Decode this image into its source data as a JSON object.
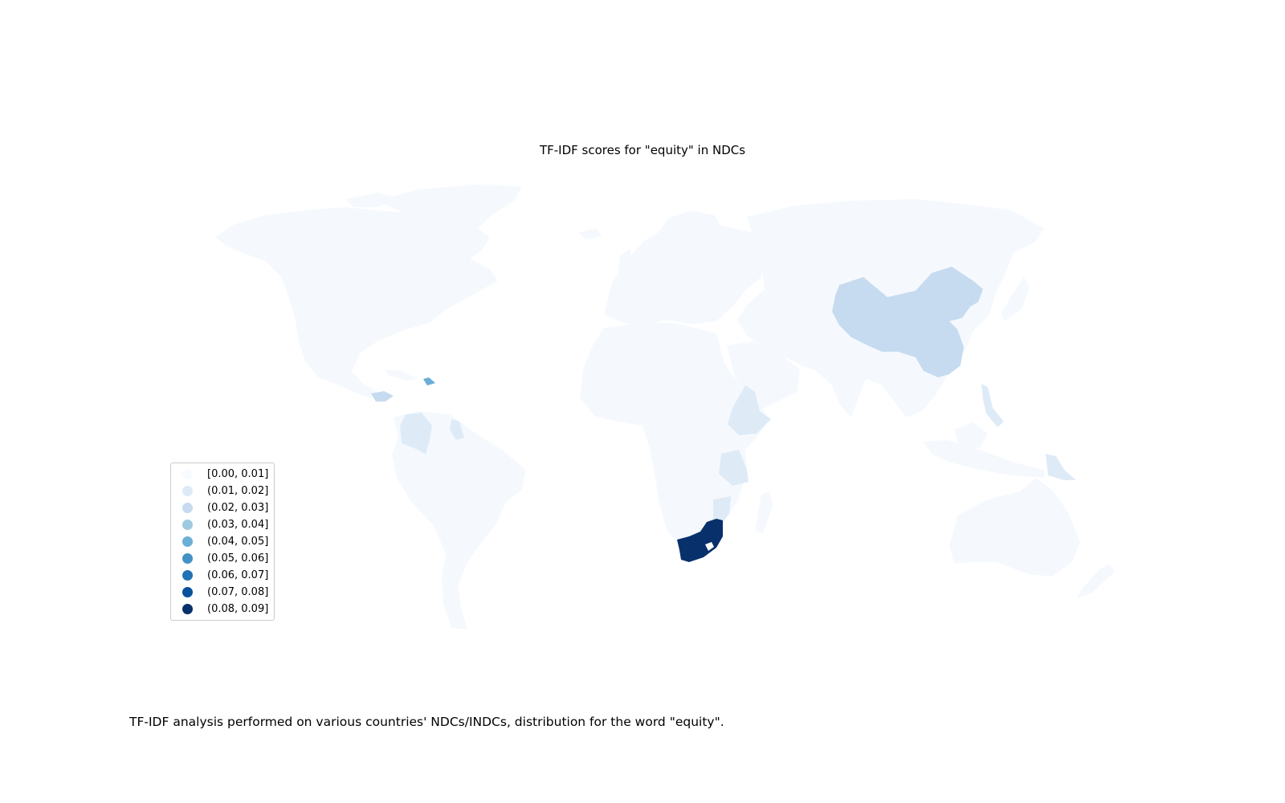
{
  "title": "TF-IDF scores for \"equity\" in NDCs",
  "caption": "TF-IDF analysis performed on various countries' NDCs/INDCs, distribution for the word \"equity\".",
  "colors": {
    "base": "#f5f9fe",
    "bins": [
      "#f7fbff",
      "#deebf7",
      "#c6dbef",
      "#9ecae1",
      "#6baed6",
      "#4292c6",
      "#2171b5",
      "#08519c",
      "#08306b"
    ]
  },
  "legend": {
    "items": [
      {
        "label": "[0.00, 0.01]",
        "color": "#f7fbff"
      },
      {
        "label": "(0.01, 0.02]",
        "color": "#deebf7"
      },
      {
        "label": "(0.02, 0.03]",
        "color": "#c6dbef"
      },
      {
        "label": "(0.03, 0.04]",
        "color": "#9ecae1"
      },
      {
        "label": "(0.04, 0.05]",
        "color": "#6baed6"
      },
      {
        "label": "(0.05, 0.06]",
        "color": "#4292c6"
      },
      {
        "label": "(0.06, 0.07]",
        "color": "#2171b5"
      },
      {
        "label": "(0.07, 0.08]",
        "color": "#08519c"
      },
      {
        "label": "(0.08, 0.09]",
        "color": "#08306b"
      }
    ]
  },
  "highlighted_regions": [
    {
      "region": "china",
      "bin": 2
    },
    {
      "region": "ethiopia",
      "bin": 1
    },
    {
      "region": "tanzania",
      "bin": 1
    },
    {
      "region": "mozambique",
      "bin": 1
    },
    {
      "region": "colombia",
      "bin": 1
    },
    {
      "region": "venezuela",
      "bin": 1
    },
    {
      "region": "papua-new-guinea",
      "bin": 1
    },
    {
      "region": "philippines",
      "bin": 1
    },
    {
      "region": "dominican-republic",
      "bin": 4
    },
    {
      "region": "central-america",
      "bin": 2
    },
    {
      "region": "south-africa",
      "bin": 8
    }
  ]
}
